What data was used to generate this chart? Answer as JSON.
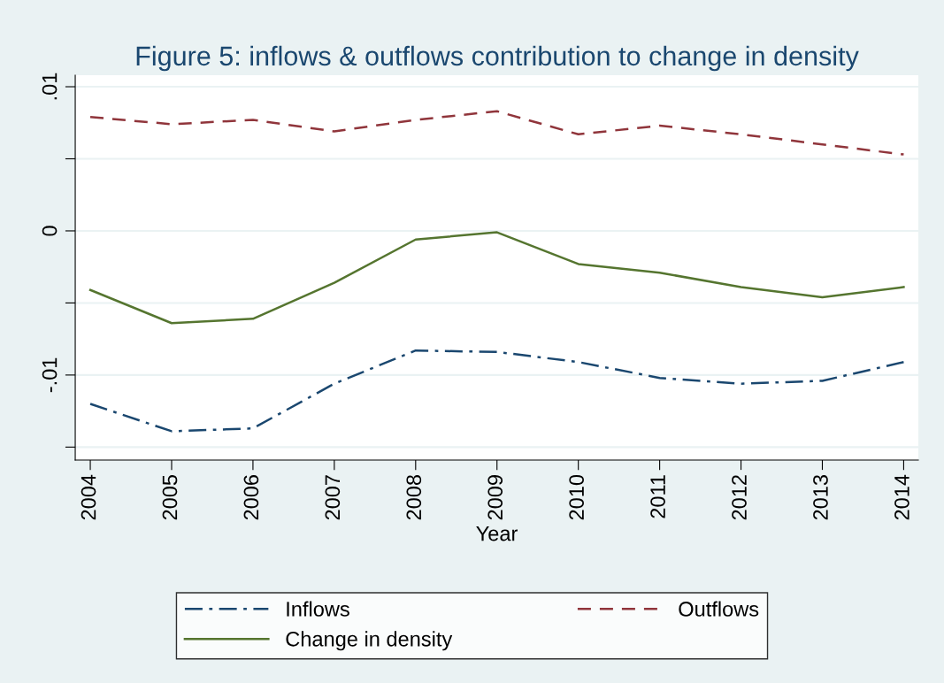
{
  "chart_data": {
    "type": "line",
    "title": "Figure 5: inflows & outflows contribution to change in density",
    "xlabel": "Year",
    "x": [
      2004,
      2005,
      2006,
      2007,
      2008,
      2009,
      2010,
      2011,
      2012,
      2013,
      2014
    ],
    "series": [
      {
        "name": "Inflows",
        "color": "#1a476f",
        "line_style": "dashdot",
        "values": [
          -0.012,
          -0.0139,
          -0.0137,
          -0.0106,
          -0.0083,
          -0.0084,
          -0.0091,
          -0.0102,
          -0.0106,
          -0.0104,
          -0.0091
        ]
      },
      {
        "name": "Outflows",
        "color": "#90353b",
        "line_style": "dashed",
        "values": [
          0.0079,
          0.0074,
          0.0077,
          0.0069,
          0.0077,
          0.0083,
          0.0067,
          0.0073,
          0.0067,
          0.006,
          0.0053
        ]
      },
      {
        "name": "Change in density",
        "color": "#55752f",
        "line_style": "solid",
        "values": [
          -0.0041,
          -0.0064,
          -0.0061,
          -0.0036,
          -0.0006,
          -0.0001,
          -0.0023,
          -0.0029,
          -0.0039,
          -0.0046,
          -0.0039
        ]
      }
    ],
    "xlim": [
      2003.815,
      2014.18
    ],
    "xticks": [
      2004,
      2005,
      2006,
      2007,
      2008,
      2009,
      2010,
      2011,
      2012,
      2013,
      2014
    ],
    "ylim": [
      -0.0159,
      0.0108
    ],
    "yticks": [
      {
        "value": 0.01,
        "label": ".01"
      },
      {
        "value": 0.005,
        "label": null
      },
      0,
      {
        "value": -0.005,
        "label": null
      },
      {
        "value": -0.01,
        "label": "-.01"
      },
      {
        "value": -0.015,
        "label": null
      }
    ],
    "grid": "y",
    "legend": "bottom",
    "marker": "none"
  }
}
